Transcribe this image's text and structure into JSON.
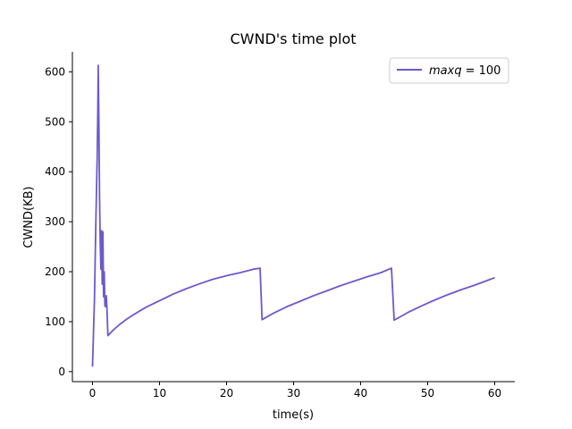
{
  "chart_data": {
    "type": "line",
    "title": "CWND's time plot",
    "xlabel": "time(s)",
    "ylabel": "CWND(KB)",
    "xlim": [
      -3,
      63
    ],
    "ylim": [
      -20,
      640
    ],
    "xticks": [
      0,
      10,
      20,
      30,
      40,
      50,
      60
    ],
    "yticks": [
      0,
      100,
      200,
      300,
      400,
      500,
      600
    ],
    "grid": false,
    "legend_position": "top-right",
    "series_color": "#6a5acd",
    "series": [
      {
        "name_var": "maxq",
        "name_eq": "= 100",
        "points": [
          [
            0.0,
            10
          ],
          [
            0.3,
            150
          ],
          [
            0.5,
            300
          ],
          [
            0.7,
            430
          ],
          [
            0.8,
            530
          ],
          [
            0.85,
            613
          ],
          [
            0.95,
            500
          ],
          [
            1.05,
            350
          ],
          [
            1.15,
            260
          ],
          [
            1.25,
            205
          ],
          [
            1.35,
            282
          ],
          [
            1.45,
            175
          ],
          [
            1.55,
            280
          ],
          [
            1.65,
            150
          ],
          [
            1.75,
            200
          ],
          [
            1.85,
            132
          ],
          [
            1.95,
            130
          ],
          [
            2.05,
            152
          ],
          [
            2.15,
            128
          ],
          [
            2.3,
            72
          ],
          [
            3,
            82
          ],
          [
            4,
            94
          ],
          [
            5,
            104
          ],
          [
            6,
            113
          ],
          [
            8,
            129
          ],
          [
            10,
            142
          ],
          [
            12,
            155
          ],
          [
            14,
            166
          ],
          [
            16,
            176
          ],
          [
            18,
            185
          ],
          [
            20,
            192
          ],
          [
            22,
            198
          ],
          [
            24,
            205
          ],
          [
            25,
            207
          ],
          [
            25.3,
            104
          ],
          [
            27,
            117
          ],
          [
            29,
            130
          ],
          [
            31,
            141
          ],
          [
            33,
            152
          ],
          [
            35,
            162
          ],
          [
            37,
            172
          ],
          [
            39,
            181
          ],
          [
            41,
            190
          ],
          [
            43,
            198
          ],
          [
            44.6,
            207
          ],
          [
            45,
            103
          ],
          [
            47,
            118
          ],
          [
            49,
            131
          ],
          [
            51,
            143
          ],
          [
            53,
            154
          ],
          [
            55,
            164
          ],
          [
            57,
            173
          ],
          [
            59,
            183
          ],
          [
            60,
            188
          ]
        ]
      }
    ]
  }
}
